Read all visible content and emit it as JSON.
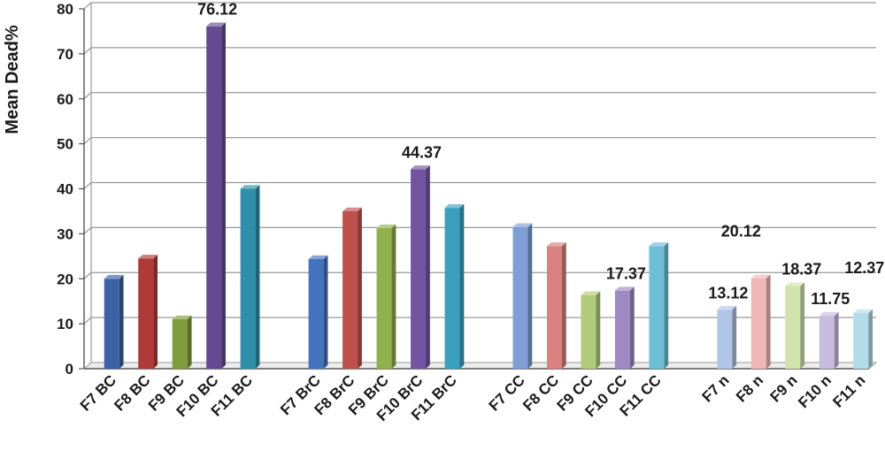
{
  "chart_data": {
    "type": "bar",
    "title": "",
    "xlabel": "",
    "ylabel": "Mean Dead%",
    "ylim": [
      0,
      80
    ],
    "yticks": [
      0,
      10,
      20,
      30,
      40,
      50,
      60,
      70,
      80
    ],
    "grid": true,
    "style": "3d",
    "groups": [
      {
        "bars": [
          {
            "label": "F7 BC",
            "value": 20,
            "color": "#3d62a6"
          },
          {
            "label": "F8 BC",
            "value": 24.5,
            "color": "#b03a37"
          },
          {
            "label": "F9 BC",
            "value": 11,
            "color": "#7e9c3b"
          },
          {
            "label": "F10 BC",
            "value": 76.12,
            "color": "#654a92",
            "data_label": "76.12"
          },
          {
            "label": "F11 BC",
            "value": 40,
            "color": "#2f8fa8"
          }
        ]
      },
      {
        "bars": [
          {
            "label": "F7 BrC",
            "value": 24.37,
            "color": "#4473be"
          },
          {
            "label": "F8 BrC",
            "value": 35,
            "color": "#c0504d"
          },
          {
            "label": "F9 BrC",
            "value": 31.25,
            "color": "#8fb04a"
          },
          {
            "label": "F10 BrC",
            "value": 44.37,
            "color": "#7454a2",
            "data_label": "44.37"
          },
          {
            "label": "F11 BrC",
            "value": 35.75,
            "color": "#3ca0bd"
          }
        ]
      },
      {
        "bars": [
          {
            "label": "F7 CC",
            "value": 31.5,
            "color": "#7e9ed4"
          },
          {
            "label": "F8 CC",
            "value": 27.25,
            "color": "#d9827f"
          },
          {
            "label": "F9 CC",
            "value": 16.37,
            "color": "#b0cb7b"
          },
          {
            "label": "F10 CC",
            "value": 17.37,
            "color": "#9f89c2",
            "data_label": "17.37"
          },
          {
            "label": "F11 CC",
            "value": 27.25,
            "color": "#6cbfd6"
          }
        ]
      },
      {
        "bars": [
          {
            "label": "F7 n",
            "value": 13.12,
            "color": "#b1c5e6",
            "data_label": "13.12"
          },
          {
            "label": "F8 n",
            "value": 20.12,
            "color": "#eeb7b5",
            "data_label": "20.12"
          },
          {
            "label": "F9 n",
            "value": 18.37,
            "color": "#d1e3ad",
            "data_label": "18.37"
          },
          {
            "label": "F10 n",
            "value": 11.75,
            "color": "#c7bbde",
            "data_label": "11.75"
          },
          {
            "label": "F11 n",
            "value": 12.37,
            "color": "#b2dce8",
            "data_label": "12.37"
          }
        ]
      }
    ]
  }
}
